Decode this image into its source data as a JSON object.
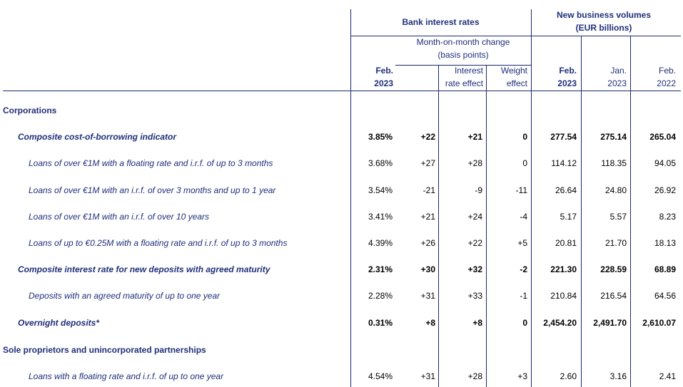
{
  "header": {
    "bank_rates": "Bank interest rates",
    "new_business_l1": "New business volumes",
    "new_business_l2": "(EUR billions)",
    "mom_l1": "Month-on-month change",
    "mom_l2": "(basis points)",
    "col_feb2023_rate_l1": "Feb.",
    "col_feb2023_rate_l2": "2023",
    "col_ire_l1": "Interest",
    "col_ire_l2": "rate effect",
    "col_we_l1": "Weight",
    "col_we_l2": "effect",
    "col_feb2023_vol_l1": "Feb.",
    "col_feb2023_vol_l2": "2023",
    "col_jan2023_l1": "Jan.",
    "col_jan2023_l2": "2023",
    "col_feb2022_l1": "Feb.",
    "col_feb2022_l2": "2022"
  },
  "rows": [
    {
      "label": "Corporations",
      "kind": "sec",
      "vals": [
        "",
        "",
        "",
        "",
        "",
        "",
        ""
      ]
    },
    {
      "label": "Composite cost-of-borrowing indicator",
      "kind": "main",
      "vals": [
        "3.85%",
        "+22",
        "+21",
        "0",
        "277.54",
        "275.14",
        "265.04"
      ]
    },
    {
      "label": "Loans of over €1M with a floating rate and i.r.f. of up to 3 months",
      "kind": "sub",
      "vals": [
        "3.68%",
        "+27",
        "+28",
        "0",
        "114.12",
        "118.35",
        "94.05"
      ]
    },
    {
      "label": "Loans of over €1M with an i.r.f. of over 3 months and up to 1 year",
      "kind": "sub",
      "vals": [
        "3.54%",
        "-21",
        "-9",
        "-11",
        "26.64",
        "24.80",
        "26.92"
      ]
    },
    {
      "label": "Loans of over €1M with an i.r.f. of over 10 years",
      "kind": "sub",
      "vals": [
        "3.41%",
        "+21",
        "+24",
        "-4",
        "5.17",
        "5.57",
        "8.23"
      ]
    },
    {
      "label": "Loans of up to €0.25M with a floating rate and i.r.f. of up to 3 months",
      "kind": "sub",
      "vals": [
        "4.39%",
        "+26",
        "+22",
        "+5",
        "20.81",
        "21.70",
        "18.13"
      ]
    },
    {
      "label": "Composite interest rate for new deposits with agreed maturity",
      "kind": "main",
      "vals": [
        "2.31%",
        "+30",
        "+32",
        "-2",
        "221.30",
        "228.59",
        "68.89"
      ]
    },
    {
      "label": "Deposits with an agreed maturity of up to one year",
      "kind": "sub",
      "vals": [
        "2.28%",
        "+31",
        "+33",
        "-1",
        "210.84",
        "216.54",
        "64.56"
      ]
    },
    {
      "label": "Overnight deposits*",
      "kind": "main",
      "vals": [
        "0.31%",
        "+8",
        "+8",
        "0",
        "2,454.20",
        "2,491.70",
        "2,610.07"
      ]
    },
    {
      "label": "Sole proprietors and unincorporated partnerships",
      "kind": "sec",
      "vals": [
        "",
        "",
        "",
        "",
        "",
        "",
        ""
      ]
    },
    {
      "label": "Loans with a floating rate and i.r.f. of up to one year",
      "kind": "sub",
      "vals": [
        "4.54%",
        "+31",
        "+28",
        "+3",
        "2.60",
        "3.16",
        "2.41"
      ]
    }
  ]
}
